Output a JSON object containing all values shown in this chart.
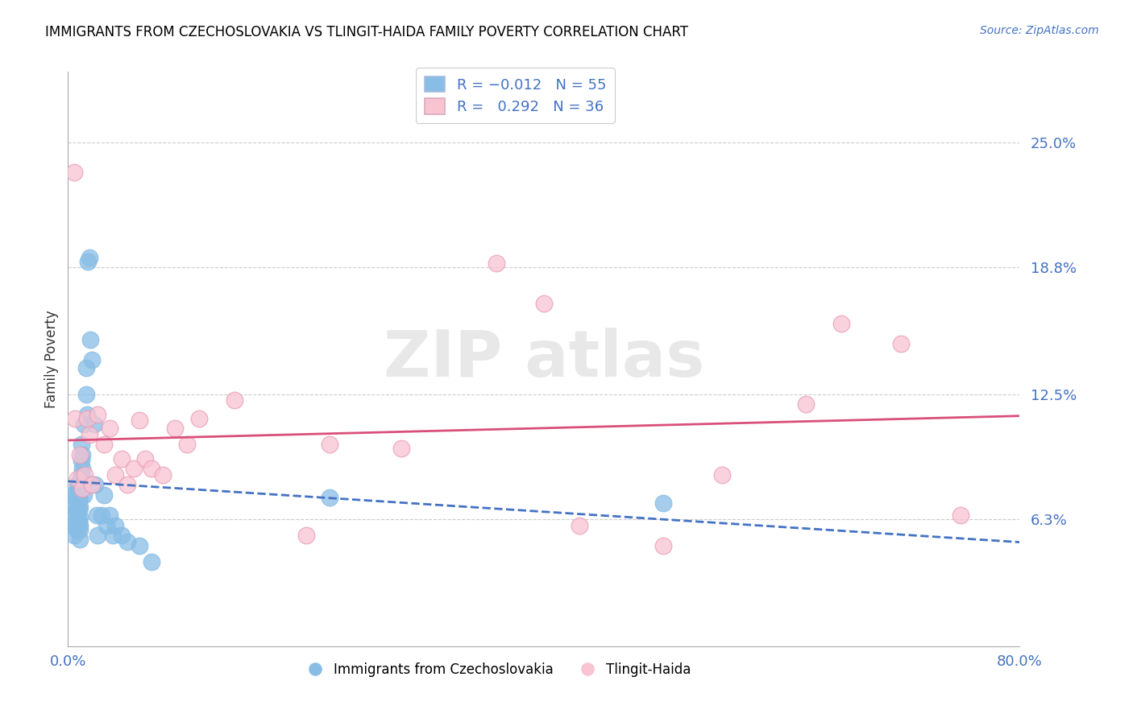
{
  "title": "IMMIGRANTS FROM CZECHOSLOVAKIA VS TLINGIT-HAIDA FAMILY POVERTY CORRELATION CHART",
  "source": "Source: ZipAtlas.com",
  "ylabel": "Family Poverty",
  "ytick_labels": [
    "6.3%",
    "12.5%",
    "18.8%",
    "25.0%"
  ],
  "ytick_values": [
    0.063,
    0.125,
    0.188,
    0.25
  ],
  "xlim": [
    0.0,
    0.8
  ],
  "ylim": [
    0.0,
    0.285
  ],
  "legend_r1": "R = -0.012",
  "legend_n1": "N = 55",
  "legend_r2": "R =  0.292",
  "legend_n2": "N = 36",
  "color_blue": "#88bde6",
  "color_pink": "#f9c4d2",
  "line_blue": "#4472c4",
  "line_pink": "#d94f7a",
  "blue_x": [
    0.003,
    0.004,
    0.005,
    0.005,
    0.006,
    0.006,
    0.007,
    0.007,
    0.007,
    0.008,
    0.008,
    0.008,
    0.009,
    0.009,
    0.009,
    0.009,
    0.01,
    0.01,
    0.01,
    0.01,
    0.01,
    0.01,
    0.01,
    0.01,
    0.011,
    0.011,
    0.011,
    0.012,
    0.012,
    0.013,
    0.013,
    0.014,
    0.015,
    0.015,
    0.016,
    0.017,
    0.018,
    0.019,
    0.02,
    0.022,
    0.023,
    0.024,
    0.025,
    0.028,
    0.03,
    0.032,
    0.035,
    0.038,
    0.04,
    0.045,
    0.05,
    0.06,
    0.07,
    0.22,
    0.5
  ],
  "blue_y": [
    0.075,
    0.065,
    0.06,
    0.055,
    0.075,
    0.07,
    0.068,
    0.062,
    0.058,
    0.08,
    0.072,
    0.065,
    0.078,
    0.073,
    0.068,
    0.062,
    0.082,
    0.076,
    0.073,
    0.069,
    0.064,
    0.06,
    0.058,
    0.053,
    0.1,
    0.092,
    0.085,
    0.095,
    0.088,
    0.11,
    0.075,
    0.082,
    0.138,
    0.125,
    0.115,
    0.191,
    0.193,
    0.152,
    0.142,
    0.11,
    0.08,
    0.065,
    0.055,
    0.065,
    0.075,
    0.06,
    0.065,
    0.055,
    0.06,
    0.055,
    0.052,
    0.05,
    0.042,
    0.074,
    0.071
  ],
  "pink_x": [
    0.005,
    0.006,
    0.008,
    0.01,
    0.012,
    0.014,
    0.016,
    0.018,
    0.02,
    0.025,
    0.03,
    0.035,
    0.04,
    0.045,
    0.05,
    0.055,
    0.06,
    0.065,
    0.07,
    0.08,
    0.09,
    0.1,
    0.11,
    0.14,
    0.2,
    0.22,
    0.28,
    0.36,
    0.4,
    0.43,
    0.5,
    0.55,
    0.62,
    0.65,
    0.7,
    0.75
  ],
  "pink_y": [
    0.235,
    0.113,
    0.083,
    0.095,
    0.078,
    0.085,
    0.113,
    0.105,
    0.08,
    0.115,
    0.1,
    0.108,
    0.085,
    0.093,
    0.08,
    0.088,
    0.112,
    0.093,
    0.088,
    0.085,
    0.108,
    0.1,
    0.113,
    0.122,
    0.055,
    0.1,
    0.098,
    0.19,
    0.17,
    0.06,
    0.05,
    0.085,
    0.12,
    0.16,
    0.15,
    0.065
  ]
}
